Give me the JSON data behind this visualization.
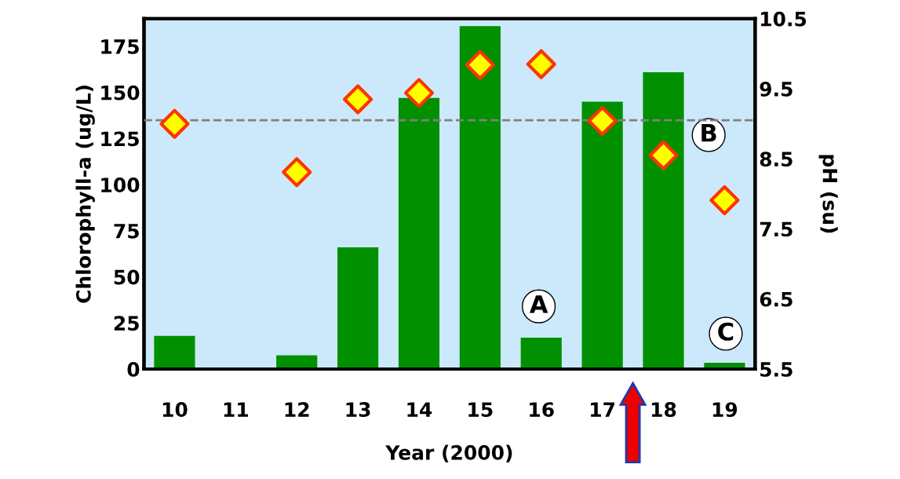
{
  "chart_data": {
    "type": "bar",
    "xlabel": "Year (2000)",
    "ylabel": "Chlorophyll-a (ug/L)",
    "y2label": "pH (su)",
    "categories": [
      "10",
      "11",
      "12",
      "13",
      "14",
      "15",
      "16",
      "17",
      "18",
      "19"
    ],
    "series": [
      {
        "color": "#009000",
        "values": [
          18,
          0,
          7.5,
          66,
          147,
          186,
          17,
          145,
          161,
          3.4
        ]
      },
      {
        "type": "scatter",
        "axis": "y2",
        "color": "#ffff00",
        "values": [
          9.0,
          null,
          8.31,
          9.35,
          9.44,
          9.84,
          9.85,
          9.04,
          8.55,
          7.91
        ]
      }
    ],
    "ylim": [
      0,
      190
    ],
    "yticks": [
      0,
      25,
      50,
      75,
      100,
      125,
      150,
      175
    ],
    "y2lim": [
      5.5,
      10.5
    ],
    "y2ticks": [
      5.5,
      6.5,
      7.5,
      8.5,
      9.5,
      10.5
    ],
    "ref_lines": [
      {
        "axis": "y2",
        "value": 9.05,
        "color": "#808080",
        "line_style": "dashed"
      }
    ],
    "annotations": [
      "A",
      "B",
      "C"
    ],
    "marker": "diamond",
    "grid": false,
    "legend": false
  }
}
